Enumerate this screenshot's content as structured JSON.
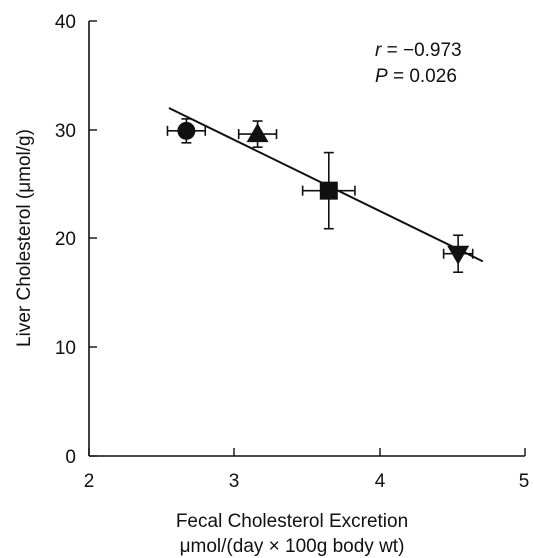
{
  "chart_data": {
    "type": "scatter",
    "xlabel_line1": "Fecal Cholesterol Excretion",
    "xlabel_line2": "μmol/(day × 100g body wt)",
    "ylabel": "Liver Cholesterol (μmol/g)",
    "xlim": [
      2,
      5
    ],
    "ylim": [
      0,
      40
    ],
    "xticks": [
      2,
      3,
      4,
      5
    ],
    "yticks": [
      0,
      10,
      20,
      30,
      40
    ],
    "grid": false,
    "legend": "none",
    "annotation": {
      "r_symbol": "r",
      "r_value": " = −0.973",
      "p_symbol": "P",
      "p_value": " = 0.026"
    },
    "points": [
      {
        "marker": "circle",
        "x": 2.67,
        "y": 29.9,
        "x_err": 0.13,
        "y_err": 1.1
      },
      {
        "marker": "triangle-up",
        "x": 3.16,
        "y": 29.6,
        "x_err": 0.13,
        "y_err": 1.2
      },
      {
        "marker": "square",
        "x": 3.65,
        "y": 24.4,
        "x_err": 0.18,
        "y_err": 3.5
      },
      {
        "marker": "triangle-down",
        "x": 4.54,
        "y": 18.6,
        "x_err": 0.1,
        "y_err": 1.7
      }
    ],
    "regression_line": {
      "x_start": 2.55,
      "y_start": 32.0,
      "x_end": 4.71,
      "y_end": 17.9
    },
    "colors": {
      "markers": "#111111",
      "axis": "#111111",
      "line": "#111111"
    }
  }
}
